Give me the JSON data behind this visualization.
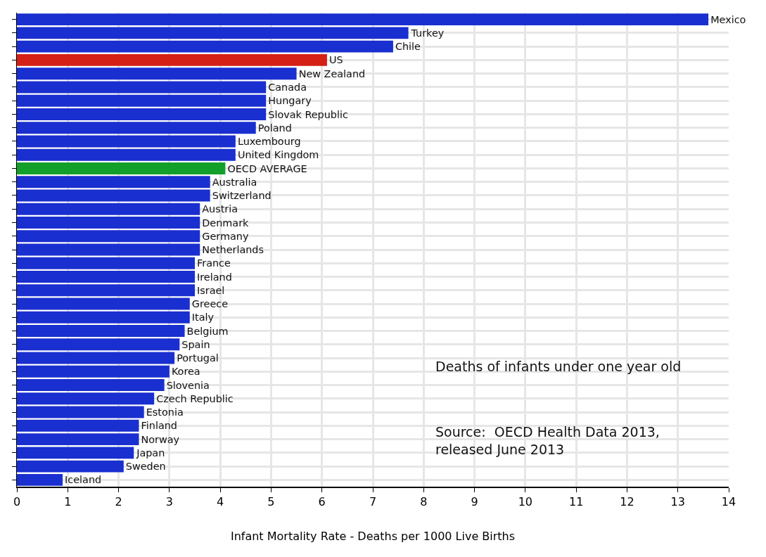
{
  "chart_data": {
    "type": "bar",
    "orientation": "horizontal",
    "xlabel": "Infant Mortality Rate - Deaths per 1000 Live Births",
    "categories": [
      "Mexico",
      "Turkey",
      "Chile",
      "US",
      "New Zealand",
      "Canada",
      "Hungary",
      "Slovak Republic",
      "Poland",
      "Luxembourg",
      "United Kingdom",
      "OECD AVERAGE",
      "Australia",
      "Switzerland",
      "Austria",
      "Denmark",
      "Germany",
      "Netherlands",
      "France",
      "Ireland",
      "Israel",
      "Greece",
      "Italy",
      "Belgium",
      "Spain",
      "Portugal",
      "Korea",
      "Slovenia",
      "Czech Republic",
      "Estonia",
      "Finland",
      "Norway",
      "Japan",
      "Sweden",
      "Iceland"
    ],
    "values": [
      13.6,
      7.7,
      7.4,
      6.1,
      5.5,
      4.9,
      4.9,
      4.9,
      4.7,
      4.3,
      4.3,
      4.1,
      3.8,
      3.8,
      3.6,
      3.6,
      3.6,
      3.6,
      3.5,
      3.5,
      3.5,
      3.4,
      3.4,
      3.3,
      3.2,
      3.1,
      3.0,
      2.9,
      2.7,
      2.5,
      2.4,
      2.4,
      2.3,
      2.1,
      0.9
    ],
    "colors": [
      "#1a2fcf",
      "#1a2fcf",
      "#1a2fcf",
      "#d42015",
      "#1a2fcf",
      "#1a2fcf",
      "#1a2fcf",
      "#1a2fcf",
      "#1a2fcf",
      "#1a2fcf",
      "#1a2fcf",
      "#12a02a",
      "#1a2fcf",
      "#1a2fcf",
      "#1a2fcf",
      "#1a2fcf",
      "#1a2fcf",
      "#1a2fcf",
      "#1a2fcf",
      "#1a2fcf",
      "#1a2fcf",
      "#1a2fcf",
      "#1a2fcf",
      "#1a2fcf",
      "#1a2fcf",
      "#1a2fcf",
      "#1a2fcf",
      "#1a2fcf",
      "#1a2fcf",
      "#1a2fcf",
      "#1a2fcf",
      "#1a2fcf",
      "#1a2fcf",
      "#1a2fcf",
      "#1a2fcf"
    ],
    "xlim": [
      0,
      14
    ],
    "xticks": [
      0,
      1,
      2,
      3,
      4,
      5,
      6,
      7,
      8,
      9,
      10,
      11,
      12,
      13,
      14
    ],
    "grid": true,
    "tick_labels": "x",
    "annotations": [
      "Deaths of infants under one year old",
      "Source:  OECD Health Data 2013,\nreleased June 2013"
    ]
  }
}
